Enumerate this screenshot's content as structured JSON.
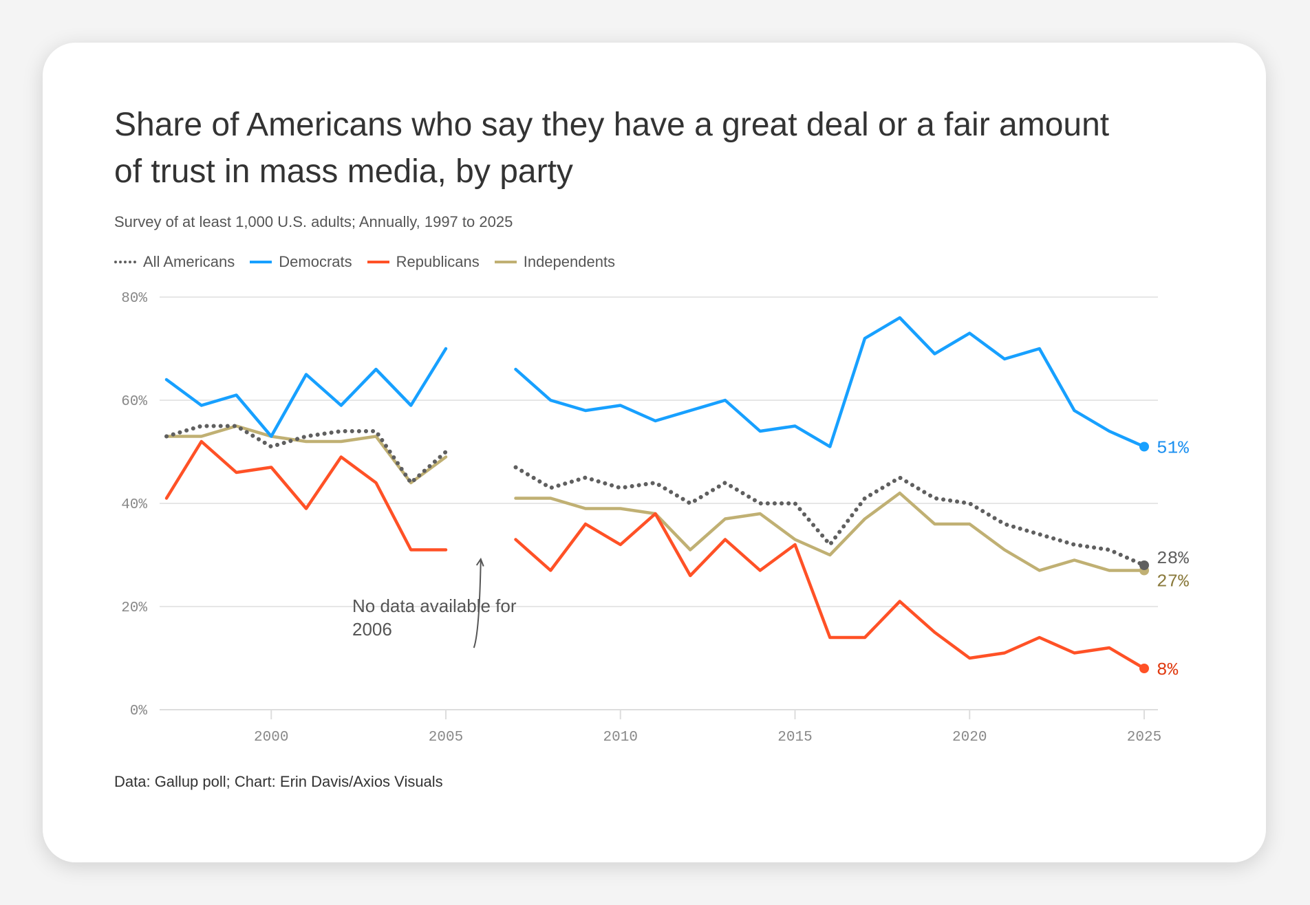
{
  "chart_data": {
    "type": "line",
    "title": "Share of Americans who say they have a great deal or a fair amount of trust in mass media, by party",
    "subtitle": "Survey of at least 1,000 U.S. adults; Annually, 1997 to 2025",
    "source": "Data: Gallup poll; Chart: Erin Davis/Axios Visuals",
    "x": [
      1997,
      1998,
      1999,
      2000,
      2001,
      2002,
      2003,
      2004,
      2005,
      2006,
      2007,
      2008,
      2009,
      2010,
      2011,
      2012,
      2013,
      2014,
      2015,
      2016,
      2017,
      2018,
      2019,
      2020,
      2021,
      2022,
      2023,
      2024,
      2025
    ],
    "xlim": [
      1997,
      2025
    ],
    "ylim": [
      0,
      80
    ],
    "x_ticks": [
      2000,
      2005,
      2010,
      2015,
      2020,
      2025
    ],
    "y_ticks": [
      {
        "v": 0,
        "label": "0%"
      },
      {
        "v": 20,
        "label": "20%"
      },
      {
        "v": 40,
        "label": "40%"
      },
      {
        "v": 60,
        "label": "60%"
      },
      {
        "v": 80,
        "label": "80%"
      }
    ],
    "grid": true,
    "legend_position": "top-left",
    "series": [
      {
        "name": "All Americans",
        "color": "#5f5f5f",
        "dotted": true,
        "end_label": "28%",
        "label_color": "#5f5f5f",
        "values": [
          53,
          55,
          55,
          51,
          53,
          54,
          54,
          44,
          50,
          null,
          47,
          43,
          45,
          43,
          44,
          40,
          44,
          40,
          40,
          32,
          41,
          45,
          41,
          40,
          36,
          34,
          32,
          31,
          28
        ]
      },
      {
        "name": "Democrats",
        "color": "#17a0ff",
        "dotted": false,
        "end_label": "51%",
        "label_color": "#1a8ff0",
        "values": [
          64,
          59,
          61,
          53,
          65,
          59,
          66,
          59,
          70,
          null,
          66,
          60,
          58,
          59,
          56,
          58,
          60,
          54,
          55,
          51,
          72,
          76,
          69,
          73,
          68,
          70,
          58,
          54,
          51
        ]
      },
      {
        "name": "Republicans",
        "color": "#ff5126",
        "dotted": false,
        "end_label": "8%",
        "label_color": "#e03a10",
        "values": [
          41,
          52,
          46,
          47,
          39,
          49,
          44,
          31,
          31,
          null,
          33,
          27,
          36,
          32,
          38,
          26,
          33,
          27,
          32,
          14,
          14,
          21,
          15,
          10,
          11,
          14,
          11,
          12,
          8
        ]
      },
      {
        "name": "Independents",
        "color": "#c0b073",
        "dotted": false,
        "end_label": "27%",
        "label_color": "#8a7a3c",
        "values": [
          53,
          53,
          55,
          53,
          52,
          52,
          53,
          44,
          49,
          null,
          41,
          41,
          39,
          39,
          38,
          31,
          37,
          38,
          33,
          30,
          37,
          42,
          36,
          36,
          31,
          27,
          29,
          27,
          27
        ]
      }
    ],
    "annotation": {
      "lines": [
        "No data available for",
        "2006"
      ],
      "x": 2006
    }
  }
}
